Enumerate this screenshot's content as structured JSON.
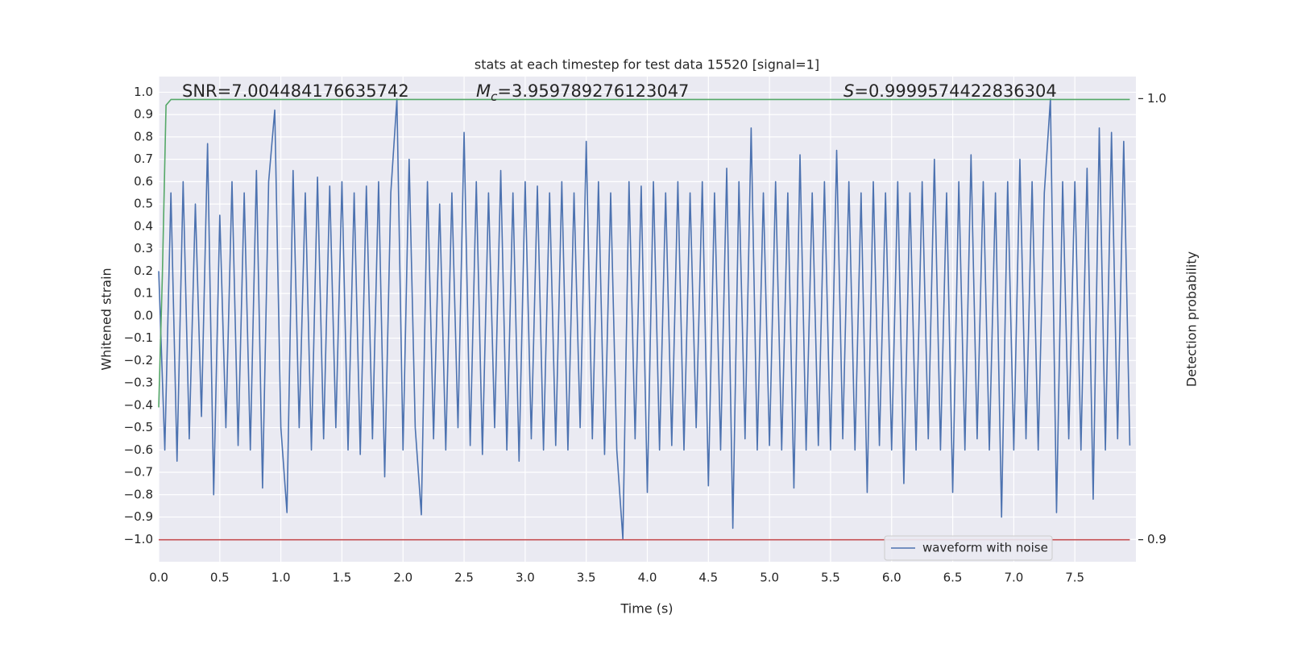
{
  "chart_data": {
    "type": "line",
    "title": "stats at each timestep for test data 15520 [signal=1]",
    "xlabel": "Time (s)",
    "ylabel": "Whitened strain",
    "y2label": "Detection probability",
    "annotations": [
      {
        "text": "SNR=7.004484176635742"
      },
      {
        "symbol": "M",
        "subscript": "c",
        "text": "=3.959789276123047"
      },
      {
        "symbol": "S",
        "text": "=0.9999574422836304"
      }
    ],
    "xlim": [
      0,
      8.0
    ],
    "ylim": [
      -1.1,
      1.07
    ],
    "y2lim": [
      0.895,
      1.005
    ],
    "xticks": [
      {
        "value": 0,
        "label": "0.0"
      },
      0.5,
      {
        "value": 1,
        "label": "1.0"
      },
      1.5,
      {
        "value": 2,
        "label": "2.0"
      },
      2.5,
      {
        "value": 3,
        "label": "3.0"
      },
      3.5,
      {
        "value": 4,
        "label": "4.0"
      },
      4.5,
      {
        "value": 5,
        "label": "5.0"
      },
      5.5,
      {
        "value": 6,
        "label": "6.0"
      },
      6.5,
      {
        "value": 7,
        "label": "7.0"
      },
      7.5
    ],
    "yticks": [
      {
        "value": -1.0,
        "label": "−1.0"
      },
      {
        "value": -0.9,
        "label": "−0.9"
      },
      {
        "value": -0.8,
        "label": "−0.8"
      },
      {
        "value": -0.7,
        "label": "−0.7"
      },
      {
        "value": -0.6,
        "label": "−0.6"
      },
      {
        "value": -0.5,
        "label": "−0.5"
      },
      {
        "value": -0.4,
        "label": "−0.4"
      },
      {
        "value": -0.3,
        "label": "−0.3"
      },
      {
        "value": -0.2,
        "label": "−0.2"
      },
      {
        "value": -0.1,
        "label": "−0.1"
      },
      {
        "value": 0,
        "label": "0.0"
      },
      0.1,
      0.2,
      0.3,
      0.4,
      0.5,
      0.6,
      0.7,
      0.8,
      0.9,
      {
        "value": 1,
        "label": "1.0"
      }
    ],
    "y2ticks": [
      0.9,
      {
        "value": 1,
        "label": "1.0"
      }
    ],
    "grid": true,
    "legend": "lower right",
    "series": [
      {
        "name": "waveform with noise",
        "color": "#4c72b0",
        "x": [
          0,
          0.05,
          0.1,
          0.15,
          0.2,
          0.25,
          0.3,
          0.35,
          0.4,
          0.45,
          0.5,
          0.55,
          0.6,
          0.65,
          0.7,
          0.75,
          0.8,
          0.85,
          0.9,
          0.95,
          1,
          1.05,
          1.1,
          1.15,
          1.2,
          1.25,
          1.3,
          1.35,
          1.4,
          1.45,
          1.5,
          1.55,
          1.6,
          1.65,
          1.7,
          1.75,
          1.8,
          1.85,
          1.9,
          1.95,
          2,
          2.05,
          2.1,
          2.15,
          2.2,
          2.25,
          2.3,
          2.35,
          2.4,
          2.45,
          2.5,
          2.55,
          2.6,
          2.65,
          2.7,
          2.75,
          2.8,
          2.85,
          2.9,
          2.95,
          3,
          3.05,
          3.1,
          3.15,
          3.2,
          3.25,
          3.3,
          3.35,
          3.4,
          3.45,
          3.5,
          3.55,
          3.6,
          3.65,
          3.7,
          3.75,
          3.8,
          3.85,
          3.9,
          3.95,
          4,
          4.05,
          4.1,
          4.15,
          4.2,
          4.25,
          4.3,
          4.35,
          4.4,
          4.45,
          4.5,
          4.55,
          4.6,
          4.65,
          4.7,
          4.75,
          4.8,
          4.85,
          4.9,
          4.95,
          5,
          5.05,
          5.1,
          5.15,
          5.2,
          5.25,
          5.3,
          5.35,
          5.4,
          5.45,
          5.5,
          5.55,
          5.6,
          5.65,
          5.7,
          5.75,
          5.8,
          5.85,
          5.9,
          5.95,
          6,
          6.05,
          6.1,
          6.15,
          6.2,
          6.25,
          6.3,
          6.35,
          6.4,
          6.45,
          6.5,
          6.55,
          6.6,
          6.65,
          6.7,
          6.75,
          6.8,
          6.85,
          6.9,
          6.95,
          7,
          7.05,
          7.1,
          7.15,
          7.2,
          7.25,
          7.3,
          7.35,
          7.4,
          7.45,
          7.5,
          7.55,
          7.6,
          7.65,
          7.7,
          7.75,
          7.8,
          7.85,
          7.9,
          7.95
        ],
        "values": [
          0.2,
          -0.6,
          0.55,
          -0.65,
          0.6,
          -0.55,
          0.5,
          -0.45,
          0.77,
          -0.8,
          0.45,
          -0.5,
          0.6,
          -0.58,
          0.55,
          -0.6,
          0.65,
          -0.77,
          0.6,
          0.92,
          -0.5,
          -0.88,
          0.65,
          -0.5,
          0.55,
          -0.6,
          0.62,
          -0.55,
          0.58,
          -0.5,
          0.6,
          -0.6,
          0.55,
          -0.62,
          0.58,
          -0.55,
          0.6,
          -0.72,
          0.55,
          0.97,
          -0.6,
          0.7,
          -0.5,
          -0.89,
          0.6,
          -0.55,
          0.5,
          -0.6,
          0.55,
          -0.5,
          0.82,
          -0.58,
          0.6,
          -0.62,
          0.55,
          -0.5,
          0.65,
          -0.6,
          0.55,
          -0.65,
          0.6,
          -0.55,
          0.58,
          -0.6,
          0.55,
          -0.58,
          0.6,
          -0.6,
          0.55,
          -0.5,
          0.78,
          -0.55,
          0.6,
          -0.62,
          0.55,
          -0.6,
          -1.0,
          0.6,
          -0.55,
          0.58,
          -0.79,
          0.6,
          -0.6,
          0.55,
          -0.58,
          0.6,
          -0.6,
          0.55,
          -0.5,
          0.6,
          -0.76,
          0.55,
          -0.6,
          0.66,
          -0.95,
          0.6,
          -0.55,
          0.84,
          -0.6,
          0.55,
          -0.58,
          0.6,
          -0.6,
          0.55,
          -0.77,
          0.72,
          -0.6,
          0.55,
          -0.58,
          0.6,
          -0.6,
          0.74,
          -0.55,
          0.6,
          -0.6,
          0.55,
          -0.79,
          0.6,
          -0.58,
          0.55,
          -0.6,
          0.6,
          -0.75,
          0.55,
          -0.6,
          0.6,
          -0.55,
          0.7,
          -0.6,
          0.55,
          -0.79,
          0.6,
          -0.6,
          0.72,
          -0.55,
          0.6,
          -0.6,
          0.55,
          -0.9,
          0.6,
          -0.6,
          0.7,
          -0.55,
          0.6,
          -0.6,
          0.55,
          0.97,
          -0.88,
          0.6,
          -0.55,
          0.6,
          -0.6,
          0.66,
          -0.82,
          0.84,
          -0.6,
          0.82,
          -0.55,
          0.78,
          -0.58
        ]
      },
      {
        "color": "#55a868",
        "axis": "y2",
        "x": [
          0,
          0.03,
          0.06,
          0.1,
          7.95
        ],
        "values": [
          0.93,
          0.96,
          0.9985,
          0.9998,
          0.9998
        ]
      },
      {
        "color": "#c44e52",
        "axis": "y2",
        "x": [
          0,
          7.95
        ],
        "values": [
          0.9,
          0.9
        ]
      }
    ]
  }
}
